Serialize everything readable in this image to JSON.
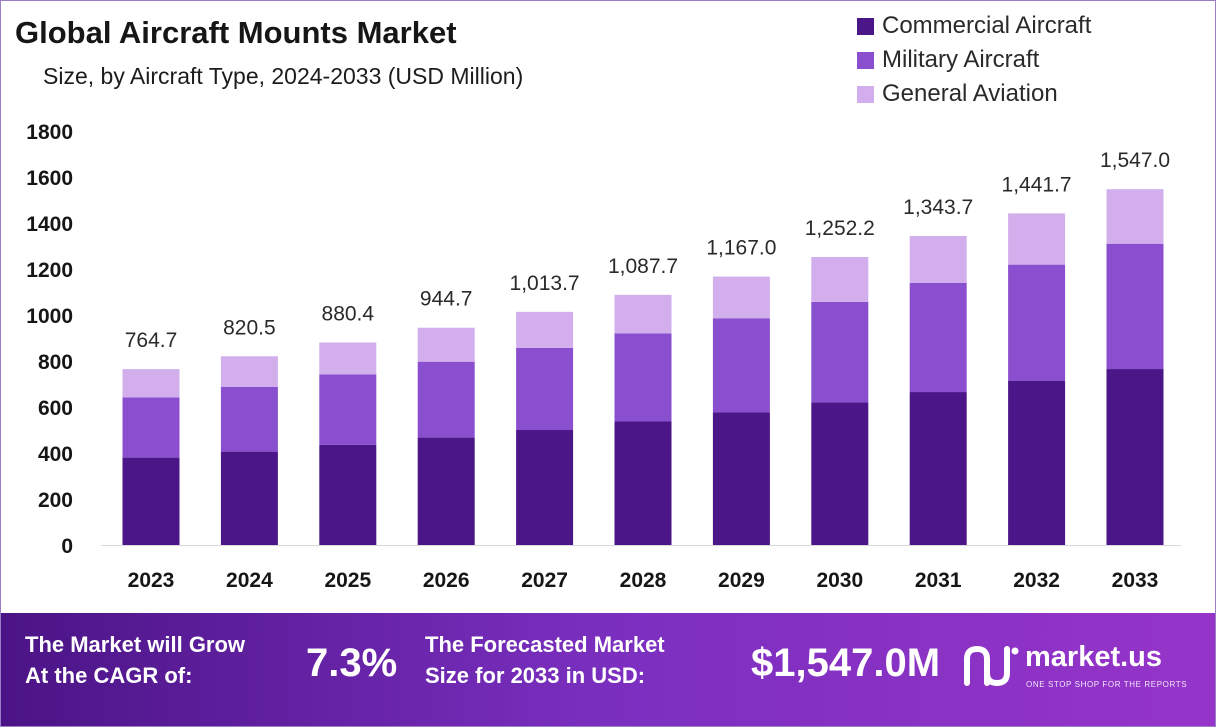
{
  "title": "Global Aircraft Mounts Market",
  "subtitle": "Size, by Aircraft Type, 2024-2033 (USD Million)",
  "chart_data": {
    "type": "bar",
    "stacked": true,
    "title": "Global Aircraft Mounts Market",
    "subtitle": "Size, by Aircraft Type, 2024-2033 (USD Million)",
    "xlabel": "",
    "ylabel": "",
    "ylim": [
      0,
      1800
    ],
    "yticks": [
      0,
      200,
      400,
      600,
      800,
      1000,
      1200,
      1400,
      1600,
      1800
    ],
    "grid": false,
    "legend_position": "top-right",
    "categories": [
      "2023",
      "2024",
      "2025",
      "2026",
      "2027",
      "2028",
      "2029",
      "2030",
      "2031",
      "2032",
      "2033"
    ],
    "series": [
      {
        "name": "Commercial Aircraft",
        "color": "#4b1687",
        "values": [
          380,
          406,
          435,
          467,
          500,
          537,
          576,
          620,
          665,
          713,
          765
        ]
      },
      {
        "name": "Military Aircraft",
        "color": "#8a4fce",
        "values": [
          262,
          282,
          307,
          330,
          357,
          383,
          410,
          437,
          475,
          506,
          545
        ]
      },
      {
        "name": "General Aviation",
        "color": "#d2aeed",
        "values": [
          122.7,
          132.5,
          138.4,
          147.7,
          156.7,
          167.7,
          181.0,
          195.2,
          203.7,
          222.7,
          237.0
        ]
      }
    ],
    "totals": [
      764.7,
      820.5,
      880.4,
      944.7,
      1013.7,
      1087.7,
      1167.0,
      1252.2,
      1343.7,
      1441.7,
      1547.0
    ],
    "total_labels": [
      "764.7",
      "820.5",
      "880.4",
      "944.7",
      "1,013.7",
      "1,087.7",
      "1,167.0",
      "1,252.2",
      "1,343.7",
      "1,441.7",
      "1,547.0"
    ]
  },
  "banner": {
    "cagr_line1": "The Market will Grow",
    "cagr_line2": "At the CAGR of:",
    "cagr_value": "7.3%",
    "forecast_line1": "The Forecasted Market",
    "forecast_line2": "Size for 2033 in USD:",
    "forecast_value": "$1,547.0M",
    "brand_name": "market.us",
    "brand_tagline": "ONE STOP SHOP FOR THE REPORTS",
    "brand_icon": "market-us-logo-icon"
  }
}
